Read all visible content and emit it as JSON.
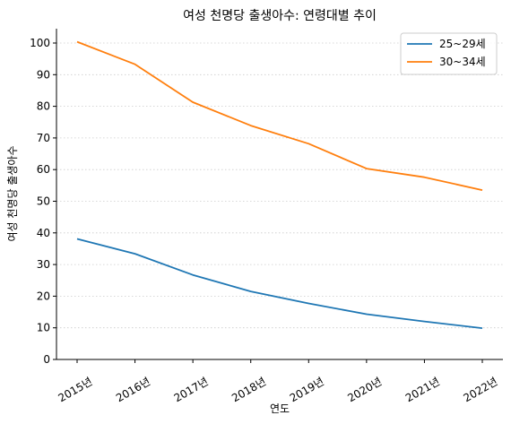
{
  "chart_data": {
    "type": "line",
    "title": "여성 천명당 출생아수: 연령대별 추이",
    "xlabel": "연도",
    "ylabel": "여성 천명당 출생아수",
    "categories": [
      "2015년",
      "2016년",
      "2017년",
      "2018년",
      "2019년",
      "2020년",
      "2021년",
      "2022년"
    ],
    "series": [
      {
        "name": "25~29세",
        "color": "#1f77b4",
        "values": [
          38.1,
          33.4,
          26.7,
          21.5,
          17.7,
          14.3,
          12.0,
          9.9
        ]
      },
      {
        "name": "30~34세",
        "color": "#ff7f0e",
        "values": [
          100.4,
          93.3,
          81.3,
          73.9,
          68.2,
          60.3,
          57.6,
          53.5
        ]
      }
    ],
    "ylim": [
      0,
      105
    ],
    "yticks": [
      0,
      10,
      20,
      30,
      40,
      50,
      60,
      70,
      80,
      90,
      100
    ],
    "grid": "y-dotted",
    "legend": "top-right"
  }
}
